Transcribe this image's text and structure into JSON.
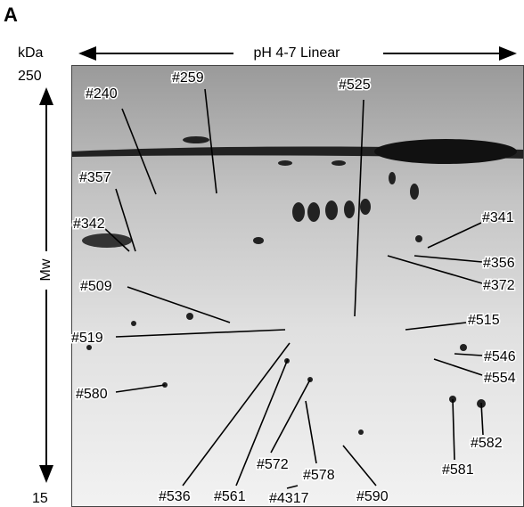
{
  "panel": "A",
  "axis": {
    "unit": "kDa",
    "top": 250,
    "bottom": 15,
    "y_label": "Mw",
    "x_label": "pH 4-7 Linear"
  },
  "spot_labels": [
    "#259",
    "#240",
    "#525",
    "#357",
    "#342",
    "#341",
    "#356",
    "#372",
    "#509",
    "#515",
    "#519",
    "#546",
    "#554",
    "#580",
    "#582",
    "#581",
    "#572",
    "#578",
    "#536",
    "#561",
    "#4317",
    "#590"
  ]
}
